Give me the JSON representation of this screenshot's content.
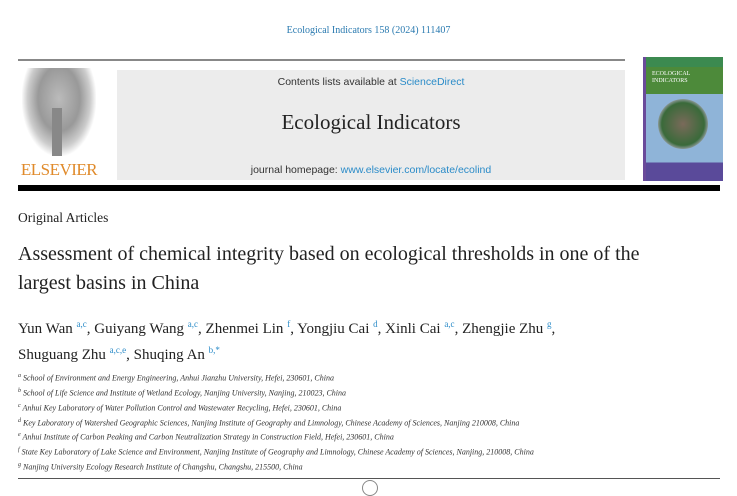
{
  "citation": "Ecological Indicators 158 (2024) 111407",
  "publisher": "ELSEVIER",
  "header": {
    "contents_prefix": "Contents lists available at ",
    "contents_link": "ScienceDirect",
    "journal": "Ecological Indicators",
    "homepage_prefix": "journal homepage: ",
    "homepage_link": "www.elsevier.com/locate/ecolind"
  },
  "cover": {
    "title": "ECOLOGICAL INDICATORS"
  },
  "section": "Original Articles",
  "title": "Assessment of chemical integrity based on ecological thresholds in one of the largest basins in China",
  "authors": [
    {
      "name": "Yun Wan",
      "sup": "a,c"
    },
    {
      "name": "Guiyang Wang",
      "sup": "a,c"
    },
    {
      "name": "Zhenmei Lin",
      "sup": "f"
    },
    {
      "name": "Yongjiu Cai",
      "sup": "d"
    },
    {
      "name": "Xinli Cai",
      "sup": "a,c"
    },
    {
      "name": "Zhengjie Zhu",
      "sup": "g"
    },
    {
      "name": "Shuguang Zhu",
      "sup": "a,c,e"
    },
    {
      "name": "Shuqing An",
      "sup": "b,*"
    }
  ],
  "affiliations": [
    {
      "key": "a",
      "text": "School of Environment and Energy Engineering, Anhui Jianzhu University, Hefei, 230601, China"
    },
    {
      "key": "b",
      "text": "School of Life Science and Institute of Wetland Ecology, Nanjing University, Nanjing, 210023, China"
    },
    {
      "key": "c",
      "text": "Anhui Key Laboratory of Water Pollution Control and Wastewater Recycling, Hefei, 230601, China"
    },
    {
      "key": "d",
      "text": "Key Laboratory of Watershed Geographic Sciences, Nanjing Institute of Geography and Limnology, Chinese Academy of Sciences, Nanjing 210008, China"
    },
    {
      "key": "e",
      "text": "Anhui Institute of Carbon Peaking and Carbon Neutralization Strategy in Construction Field, Hefei, 230601, China"
    },
    {
      "key": "f",
      "text": "State Key Laboratory of Lake Science and Environment, Nanjing Institute of Geography and Limnology, Chinese Academy of Sciences, Nanjing, 210008, China"
    },
    {
      "key": "g",
      "text": "Nanjing University Ecology Research Institute of Changshu, Changshu, 215500, China"
    }
  ]
}
